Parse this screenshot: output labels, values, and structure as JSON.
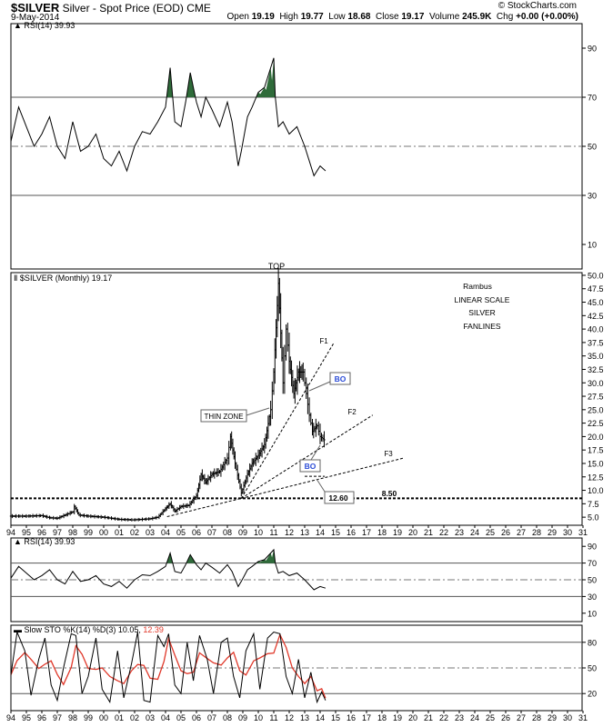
{
  "header": {
    "symbol": "$SILVER",
    "description": "Silver - Spot Price (EOD)",
    "exchange": "CME",
    "date": "9-May-2014",
    "brand": "© StockCharts.com",
    "open_label": "Open",
    "open": "19.19",
    "high_label": "High",
    "high": "19.77",
    "low_label": "Low",
    "low": "18.68",
    "close_label": "Close",
    "close": "19.17",
    "volume_label": "Volume",
    "volume": "245.9K",
    "chg_label": "Chg",
    "chg": "+0.00 (+0.00%)"
  },
  "chart_data": [
    {
      "type": "line",
      "legend": "RSI(14) 39.93",
      "ylim": [
        0,
        100
      ],
      "y_ticks": [
        10,
        30,
        50,
        70,
        90
      ],
      "overbought": 70,
      "midline": 50,
      "oversold": 30,
      "x": [
        1994.0,
        1994.5,
        1995.0,
        1995.5,
        1996.0,
        1996.5,
        1997.0,
        1997.5,
        1998.0,
        1998.5,
        1999.0,
        1999.5,
        2000.0,
        2000.5,
        2001.0,
        2001.5,
        2002.0,
        2002.5,
        2003.0,
        2003.5,
        2004.0,
        2004.3,
        2004.6,
        2005.0,
        2005.3,
        2005.6,
        2006.0,
        2006.3,
        2006.6,
        2007.0,
        2007.5,
        2008.0,
        2008.3,
        2008.7,
        2008.9,
        2009.3,
        2009.6,
        2010.0,
        2010.4,
        2010.8,
        2011.0,
        2011.1,
        2011.3,
        2011.6,
        2012.0,
        2012.5,
        2013.0,
        2013.3,
        2013.6,
        2014.0,
        2014.35
      ],
      "values": [
        52,
        66,
        58,
        50,
        55,
        62,
        50,
        45,
        60,
        48,
        50,
        55,
        45,
        42,
        48,
        40,
        50,
        56,
        55,
        60,
        66,
        82,
        60,
        58,
        68,
        80,
        68,
        62,
        70,
        65,
        58,
        68,
        60,
        42,
        48,
        62,
        66,
        72,
        74,
        82,
        86,
        70,
        58,
        60,
        55,
        58,
        50,
        44,
        38,
        42,
        40
      ]
    },
    {
      "type": "ohlc",
      "title": "$SILVER (Monthly) 19.17",
      "scale": "linear",
      "ylim": [
        3.5,
        50.5
      ],
      "y_ticks": [
        5.0,
        7.5,
        10.0,
        12.5,
        15.0,
        17.5,
        20.0,
        22.5,
        25.0,
        27.5,
        30.0,
        32.5,
        35.0,
        37.5,
        40.0,
        42.5,
        45.0,
        47.5,
        50.0
      ],
      "x_ticks": [
        "94",
        "95",
        "96",
        "97",
        "98",
        "99",
        "00",
        "01",
        "02",
        "03",
        "04",
        "05",
        "06",
        "07",
        "08",
        "09",
        "10",
        "11",
        "12",
        "13",
        "14",
        "15",
        "16",
        "17",
        "18",
        "19",
        "20",
        "21",
        "22",
        "23",
        "24",
        "25",
        "26",
        "27",
        "28",
        "29",
        "30",
        "31"
      ],
      "x": [
        1994.0,
        1995.0,
        1996.0,
        1996.5,
        1997.0,
        1998.0,
        1998.1,
        1998.4,
        1999.0,
        2000.0,
        2001.0,
        2001.9,
        2002.5,
        2003.0,
        2003.5,
        2004.0,
        2004.3,
        2004.6,
        2005.0,
        2005.5,
        2006.0,
        2006.3,
        2006.6,
        2007.0,
        2007.5,
        2008.0,
        2008.2,
        2008.5,
        2008.9,
        2009.3,
        2009.6,
        2010.0,
        2010.4,
        2010.8,
        2011.0,
        2011.3,
        2011.6,
        2011.8,
        2012.0,
        2012.3,
        2012.6,
        2012.9,
        2013.1,
        2013.3,
        2013.5,
        2013.8,
        2014.0,
        2014.35
      ],
      "values": [
        5.2,
        5.2,
        5.3,
        4.9,
        4.8,
        6.0,
        7.0,
        5.4,
        5.2,
        5.0,
        4.6,
        4.5,
        4.6,
        4.7,
        5.0,
        6.6,
        7.5,
        6.1,
        7.0,
        7.2,
        9.0,
        13.0,
        11.5,
        13.0,
        13.5,
        16.0,
        20.0,
        15.0,
        9.5,
        13.0,
        15.0,
        16.5,
        18.5,
        25.0,
        32.0,
        48.5,
        30.0,
        40.0,
        34.0,
        28.0,
        32.0,
        32.0,
        28.0,
        24.0,
        21.0,
        22.0,
        20.0,
        19.2
      ],
      "annotations": [
        "TOP",
        "Rambus",
        "LINEAR SCALE",
        "SILVER",
        "FANLINES",
        "THIN ZONE",
        "BO",
        "BO",
        "F1",
        "F2",
        "F3",
        "12.60",
        "8.50"
      ],
      "support": 8.5
    },
    {
      "type": "line",
      "legend": "RSI(14) 39.93",
      "ylim": [
        0,
        100
      ],
      "y_ticks": [
        10,
        30,
        50,
        70,
        90
      ]
    },
    {
      "type": "line",
      "legend_prefix": "Slow STO %K(14) %D(3)",
      "k_value": "10.05",
      "d_value": "12.39",
      "ylim": [
        0,
        100
      ],
      "y_ticks": [
        20,
        50,
        80
      ],
      "upper": 80,
      "lower": 20,
      "x": [
        1994.0,
        1994.4,
        1994.9,
        1995.3,
        1995.8,
        1996.2,
        1996.6,
        1997.0,
        1997.4,
        1997.9,
        1998.2,
        1998.6,
        1999.0,
        1999.5,
        1999.9,
        2000.4,
        2000.9,
        2001.3,
        2001.8,
        2002.2,
        2002.6,
        2003.0,
        2003.5,
        2003.9,
        2004.2,
        2004.6,
        2005.0,
        2005.4,
        2005.8,
        2006.2,
        2006.7,
        2007.1,
        2007.6,
        2008.0,
        2008.4,
        2008.8,
        2009.2,
        2009.7,
        2010.1,
        2010.6,
        2011.0,
        2011.4,
        2011.8,
        2012.2,
        2012.6,
        2013.0,
        2013.4,
        2013.8,
        2014.1,
        2014.35
      ],
      "values": [
        42,
        92,
        70,
        18,
        60,
        85,
        30,
        12,
        50,
        90,
        88,
        20,
        40,
        85,
        25,
        10,
        70,
        15,
        55,
        92,
        12,
        10,
        88,
        75,
        90,
        30,
        20,
        80,
        35,
        88,
        60,
        20,
        80,
        85,
        40,
        15,
        70,
        90,
        25,
        85,
        92,
        90,
        40,
        20,
        60,
        15,
        45,
        10,
        22,
        12
      ]
    }
  ],
  "colors": {
    "price_bar": "#000000",
    "rsi_fill": "#2f6b3a",
    "stoch_d": "#e0382a",
    "bo_text": "#2a4bd7",
    "grid": "#bfbfbf"
  }
}
